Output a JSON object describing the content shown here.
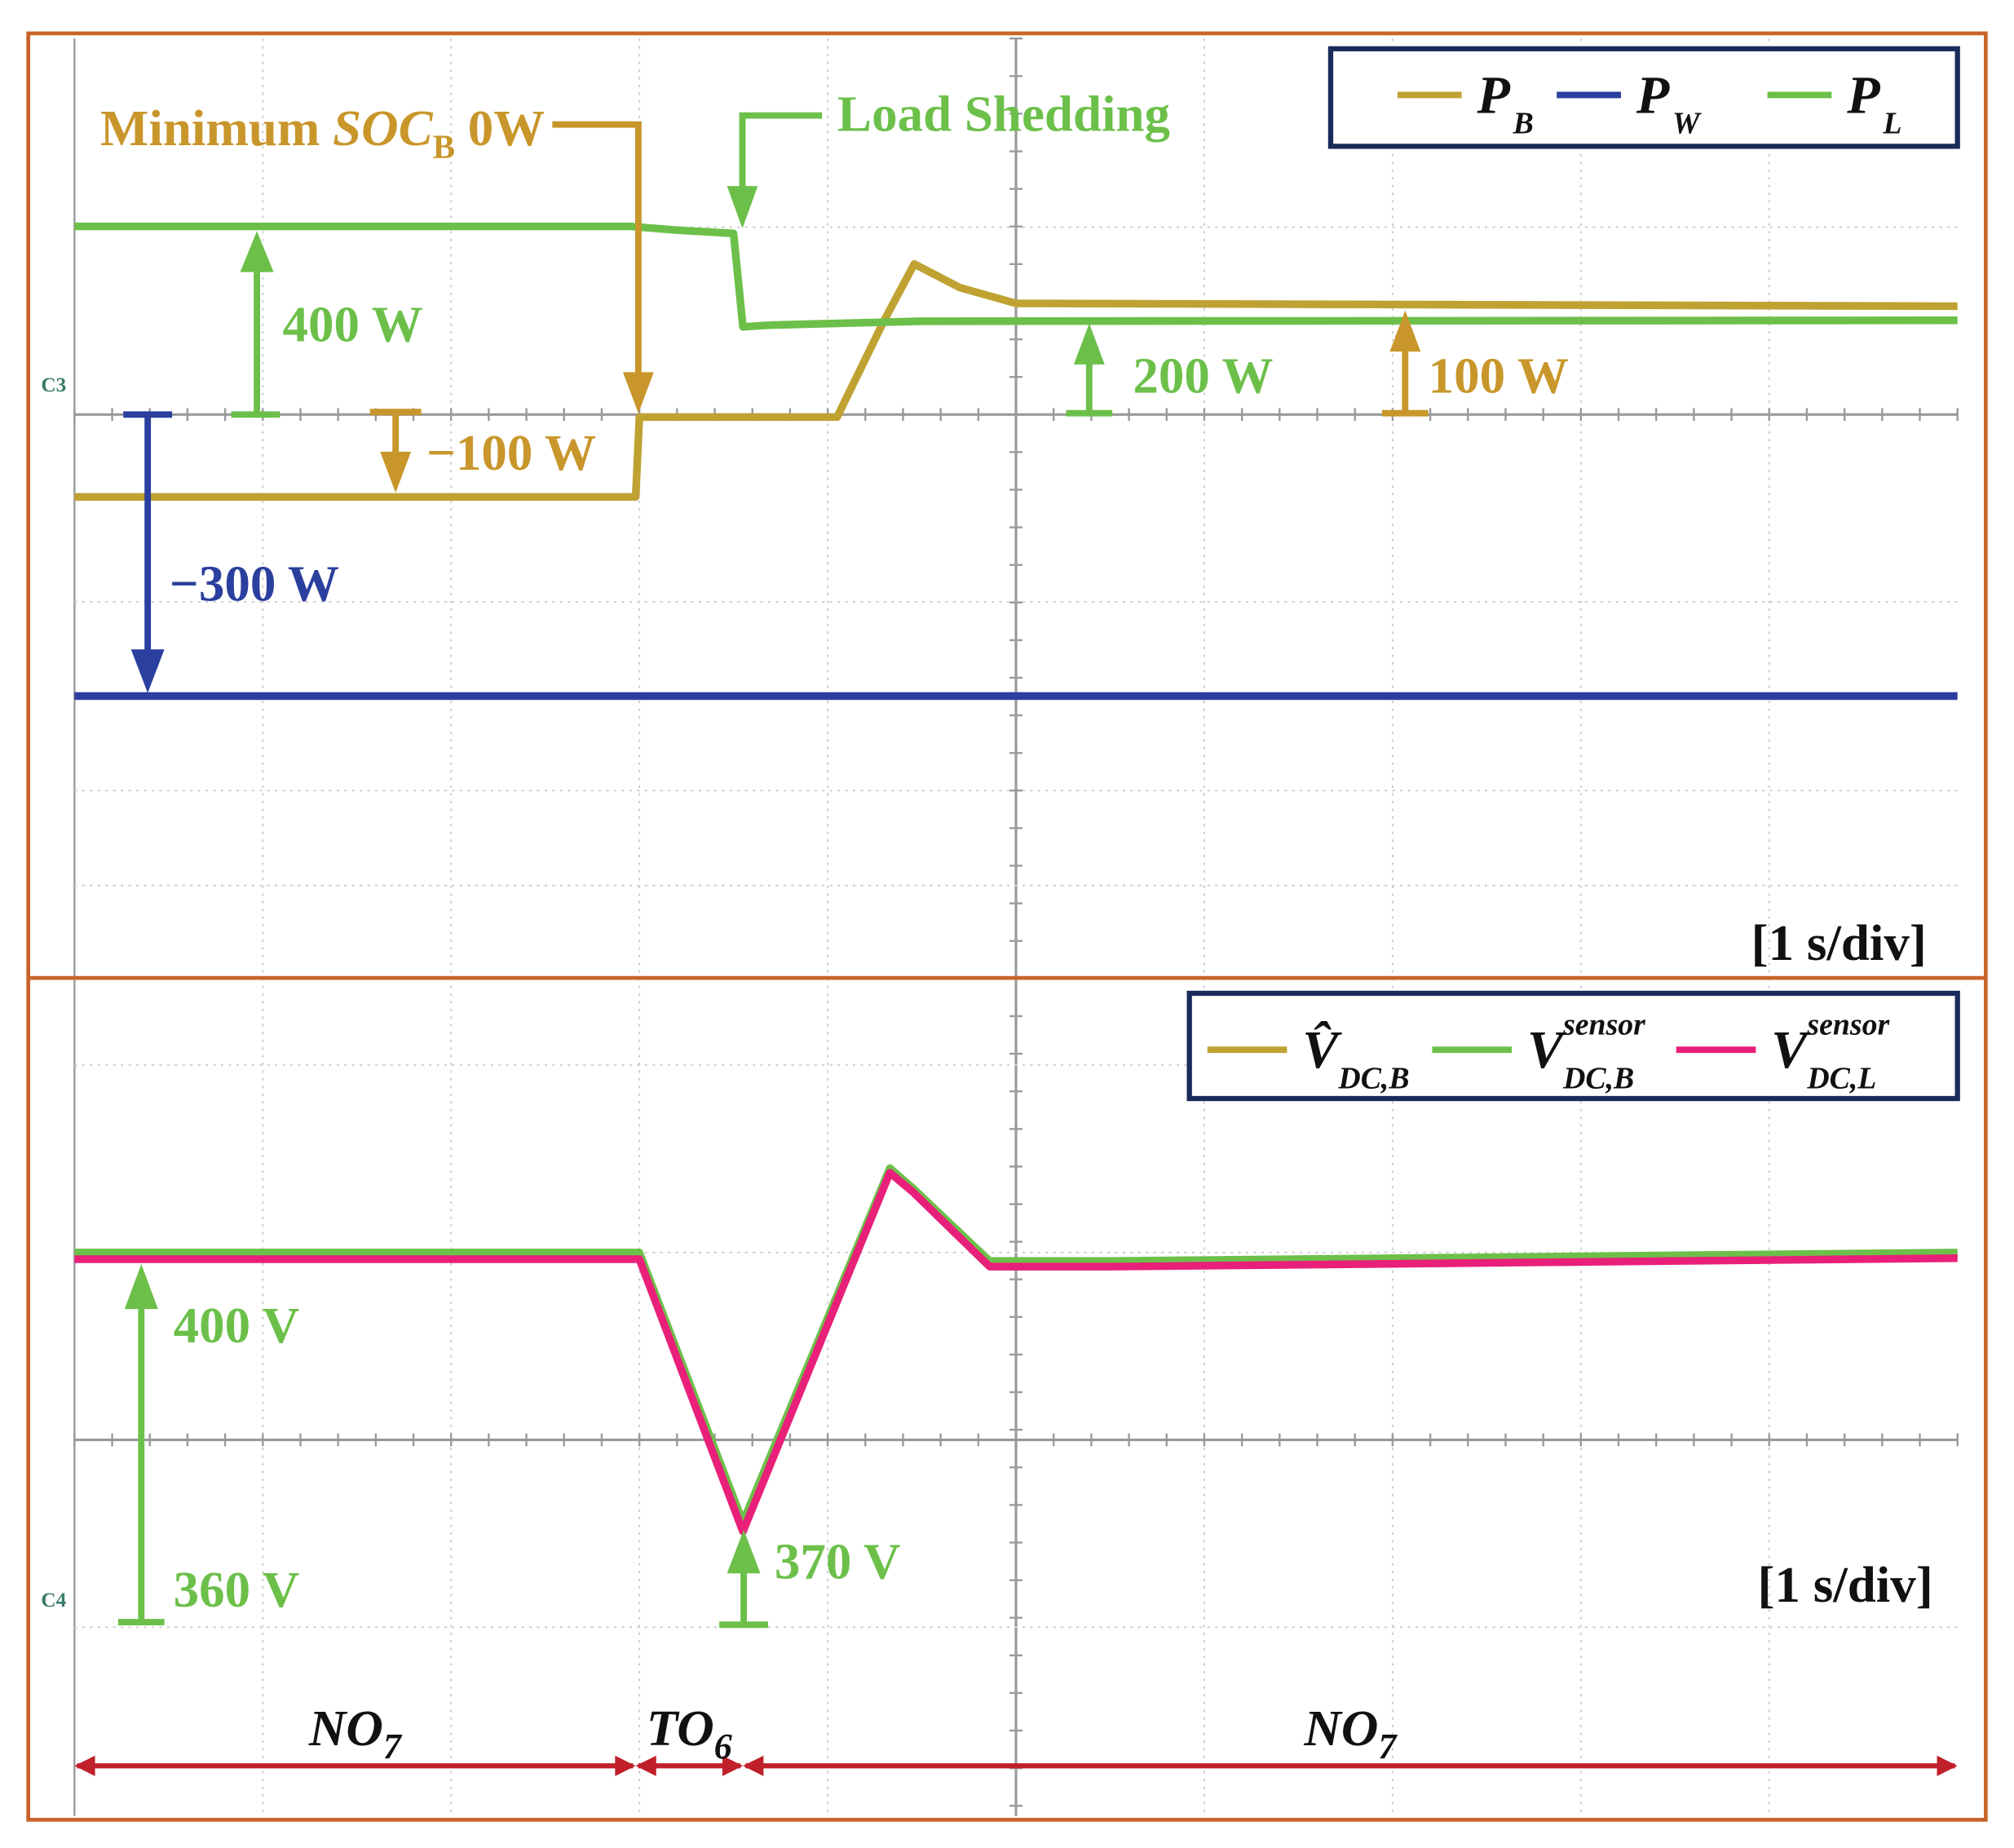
{
  "chart_data": [
    {
      "type": "line",
      "xlim": [
        0,
        10
      ],
      "scale_label": "[1 s/div]",
      "channel_marker": "C3",
      "series": [
        {
          "name": "P",
          "name_sub": "B",
          "color": "#bfa232",
          "ylim": [
            -600,
            400
          ],
          "x": [
            0,
            2.98,
            3.0,
            4.05,
            4.3,
            4.46,
            4.7,
            5.0,
            10
          ],
          "values": [
            -88,
            -88,
            -3,
            -3,
            100,
            160,
            135,
            118,
            115
          ]
        },
        {
          "name": "P",
          "name_sub": "W",
          "color": "#2b3f9e",
          "ylim": [
            -600,
            400
          ],
          "x": [
            0,
            10
          ],
          "values": [
            -300,
            -300
          ]
        },
        {
          "name": "P",
          "name_sub": "L",
          "color": "#6cc04a",
          "ylim": [
            -1200,
            800
          ],
          "x": [
            0,
            2.95,
            3.2,
            3.5,
            3.55,
            3.7,
            4.5,
            10
          ],
          "values": [
            400,
            400,
            392,
            385,
            186,
            190,
            198,
            200
          ]
        }
      ],
      "soc_label": [
        "Minimum ",
        "SOC",
        "B",
        " 0W"
      ],
      "annotations": [
        "Load Shedding",
        "400 W",
        "−100 W",
        "−300 W",
        "200 W",
        "100 W"
      ]
    },
    {
      "type": "line",
      "xlim": [
        0,
        10
      ],
      "ylim": [
        340,
        428
      ],
      "scale_label": "[1 s/div]",
      "channel_marker": "C4",
      "series": [
        {
          "name": "V̂",
          "name_sub": "DC,B",
          "color": "#bfa232",
          "x": [
            0,
            3.0,
            3.55,
            4.33,
            4.45,
            4.86,
            5.5,
            10
          ],
          "values": [
            399,
            399,
            370,
            408,
            406,
            398,
            398,
            399
          ]
        },
        {
          "name": "V",
          "name_sub": "DC,B",
          "name_sup": "sensor",
          "color": "#6cc04a",
          "x": [
            0,
            3.0,
            3.55,
            4.33,
            4.45,
            4.86,
            5.5,
            10
          ],
          "values": [
            399.3,
            399.3,
            370.6,
            408.3,
            406.2,
            398.4,
            398.4,
            399.3
          ]
        },
        {
          "name": "V",
          "name_sub": "DC,L",
          "name_sup": "sensor",
          "color": "#e8207a",
          "x": [
            0,
            3.0,
            3.55,
            4.33,
            4.45,
            4.86,
            5.5,
            10
          ],
          "values": [
            398.6,
            398.6,
            369.6,
            407.8,
            405.8,
            397.8,
            397.8,
            398.7
          ]
        }
      ],
      "annotations": [
        "400 V",
        "360 V",
        "370 V"
      ],
      "phases": [
        {
          "label": [
            "NO",
            "7"
          ],
          "start": 0,
          "end": 2.98
        },
        {
          "label": [
            "TO",
            "6"
          ],
          "start": 2.98,
          "end": 3.55
        },
        {
          "label": [
            "NO",
            "7"
          ],
          "start": 3.55,
          "end": 10
        }
      ]
    }
  ]
}
